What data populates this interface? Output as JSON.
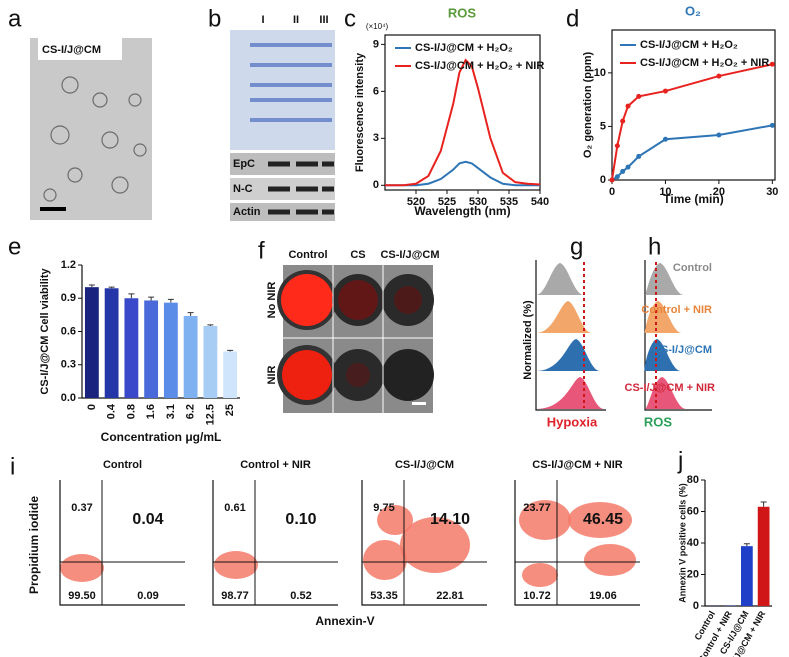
{
  "panel_labels": [
    "a",
    "b",
    "c",
    "d",
    "e",
    "f",
    "g",
    "h",
    "i",
    "j"
  ],
  "a": {
    "label": "CS-I/J@CM"
  },
  "b": {
    "lanes": [
      "I",
      "II",
      "III"
    ],
    "rows": [
      "EpC",
      "N-C",
      "Actin"
    ]
  },
  "f": {
    "columns": [
      "Control",
      "CS",
      "CS-I/J@CM"
    ],
    "rows": [
      "No NIR",
      "NIR"
    ]
  },
  "g": {
    "y_label": "Normalized (%)",
    "x_label": "Hypoxia"
  },
  "h": {
    "x_label": "ROS",
    "groups": [
      "Control",
      "Control + NIR",
      "CS-I/J@CM",
      "CS-I/J@CM + NIR"
    ]
  },
  "i": {
    "y_label": "Propidium iodide",
    "x_label": "Annexin-V",
    "plots": [
      {
        "title": "Control",
        "quadrants": {
          "upper_left": "0.37",
          "upper_right": "0.04",
          "lower_left": "99.50",
          "lower_right": "0.09"
        }
      },
      {
        "title": "Control + NIR",
        "quadrants": {
          "upper_left": "0.61",
          "upper_right": "0.10",
          "lower_left": "98.77",
          "lower_right": "0.52"
        }
      },
      {
        "title": "CS-I/J@CM",
        "quadrants": {
          "upper_left": "9.75",
          "upper_right": "14.10",
          "lower_left": "53.35",
          "lower_right": "22.81"
        }
      },
      {
        "title": "CS-I/J@CM + NIR",
        "quadrants": {
          "upper_left": "23.77",
          "upper_right": "46.45",
          "lower_left": "10.72",
          "lower_right": "19.06"
        }
      }
    ]
  },
  "chart_data": [
    {
      "type": "line",
      "title": "ROS",
      "title_color": "#5a9a3a",
      "x_label": "Wavelength (nm)",
      "y_label": "Fluorescence intensity",
      "y_unit": "(×10⁴)",
      "x": [
        515,
        518,
        520,
        522,
        524,
        526,
        527,
        528,
        529,
        530,
        532,
        534,
        536,
        538,
        540
      ],
      "series": [
        {
          "name": "CS-I/J@CM + H₂O₂",
          "color": "#2e75b6",
          "values": [
            0,
            0,
            0,
            0.1,
            0.4,
            1.0,
            1.4,
            1.5,
            1.4,
            1.1,
            0.5,
            0.1,
            0,
            0,
            0
          ]
        },
        {
          "name": "CS-I/J@CM + H₂O₂ + NIR",
          "color": "#e8231f",
          "values": [
            0,
            0,
            0.1,
            0.6,
            2.2,
            5.2,
            7.2,
            8.0,
            7.6,
            6.2,
            3.0,
            0.8,
            0.2,
            0.1,
            0.05
          ]
        }
      ],
      "xlim": [
        515,
        540
      ],
      "xticks": [
        520,
        525,
        530,
        535,
        540
      ],
      "ylim": [
        -0.3,
        9.6
      ],
      "yticks": [
        0,
        3,
        6,
        9
      ],
      "markers": false
    },
    {
      "type": "line",
      "title": "O₂",
      "title_color": "#2e75b6",
      "x_label": "Time (min)",
      "y_label": "O₂ generation (ppm)",
      "x": [
        0,
        1,
        2,
        3,
        5,
        10,
        20,
        30
      ],
      "series": [
        {
          "name": "CS-I/J@CM + H₂O₂",
          "color": "#2e75b6",
          "values": [
            0,
            0.3,
            0.8,
            1.2,
            2.2,
            3.8,
            4.2,
            5.1
          ]
        },
        {
          "name": "CS-I/J@CM + H₂O₂ + NIR",
          "color": "#e8231f",
          "values": [
            0,
            3.2,
            5.5,
            6.9,
            7.8,
            8.3,
            9.7,
            10.8
          ]
        }
      ],
      "xlim": [
        0,
        30.5
      ],
      "xticks": [
        0,
        10,
        20,
        30
      ],
      "ylim": [
        0,
        14
      ],
      "yticks": [
        0,
        5,
        10
      ],
      "markers": true
    },
    {
      "type": "bar",
      "x_label": "Concentration μg/mL",
      "y_label": "CS-I/J@CM Cell viability",
      "categories": [
        "0",
        "0.4",
        "0.8",
        "1.6",
        "3.1",
        "6.2",
        "12.5",
        "25"
      ],
      "values": [
        1.0,
        0.99,
        0.9,
        0.88,
        0.86,
        0.74,
        0.65,
        0.42
      ],
      "errors": [
        0.02,
        0.01,
        0.04,
        0.03,
        0.03,
        0.03,
        0.01,
        0.01
      ],
      "colors": [
        "#1a237e",
        "#2536a8",
        "#3949c9",
        "#4a6ad9",
        "#5a8ce8",
        "#7fb0ef",
        "#a8cdf5",
        "#cfe5fb"
      ],
      "ylim": [
        0,
        1.2
      ],
      "yticks": [
        {
          "value": 0,
          "label": "0.0"
        },
        0.3,
        0.6,
        0.9,
        1.2
      ]
    },
    {
      "type": "bar",
      "y_label": "Annexin V positive cells (%)",
      "categories": [
        "Control",
        "Control + NIR",
        "CS-I/J@CM",
        "CS-I/J@CM + NIR"
      ],
      "values": [
        0.1,
        0.2,
        38,
        63
      ],
      "errors": [
        0,
        0,
        1.5,
        3
      ],
      "colors": [
        "#1f3fc9",
        "#1f3fc9",
        "#1f3fc9",
        "#d01616"
      ],
      "ylim": [
        0,
        80
      ],
      "yticks": [
        0,
        20,
        40,
        60,
        80
      ]
    }
  ]
}
